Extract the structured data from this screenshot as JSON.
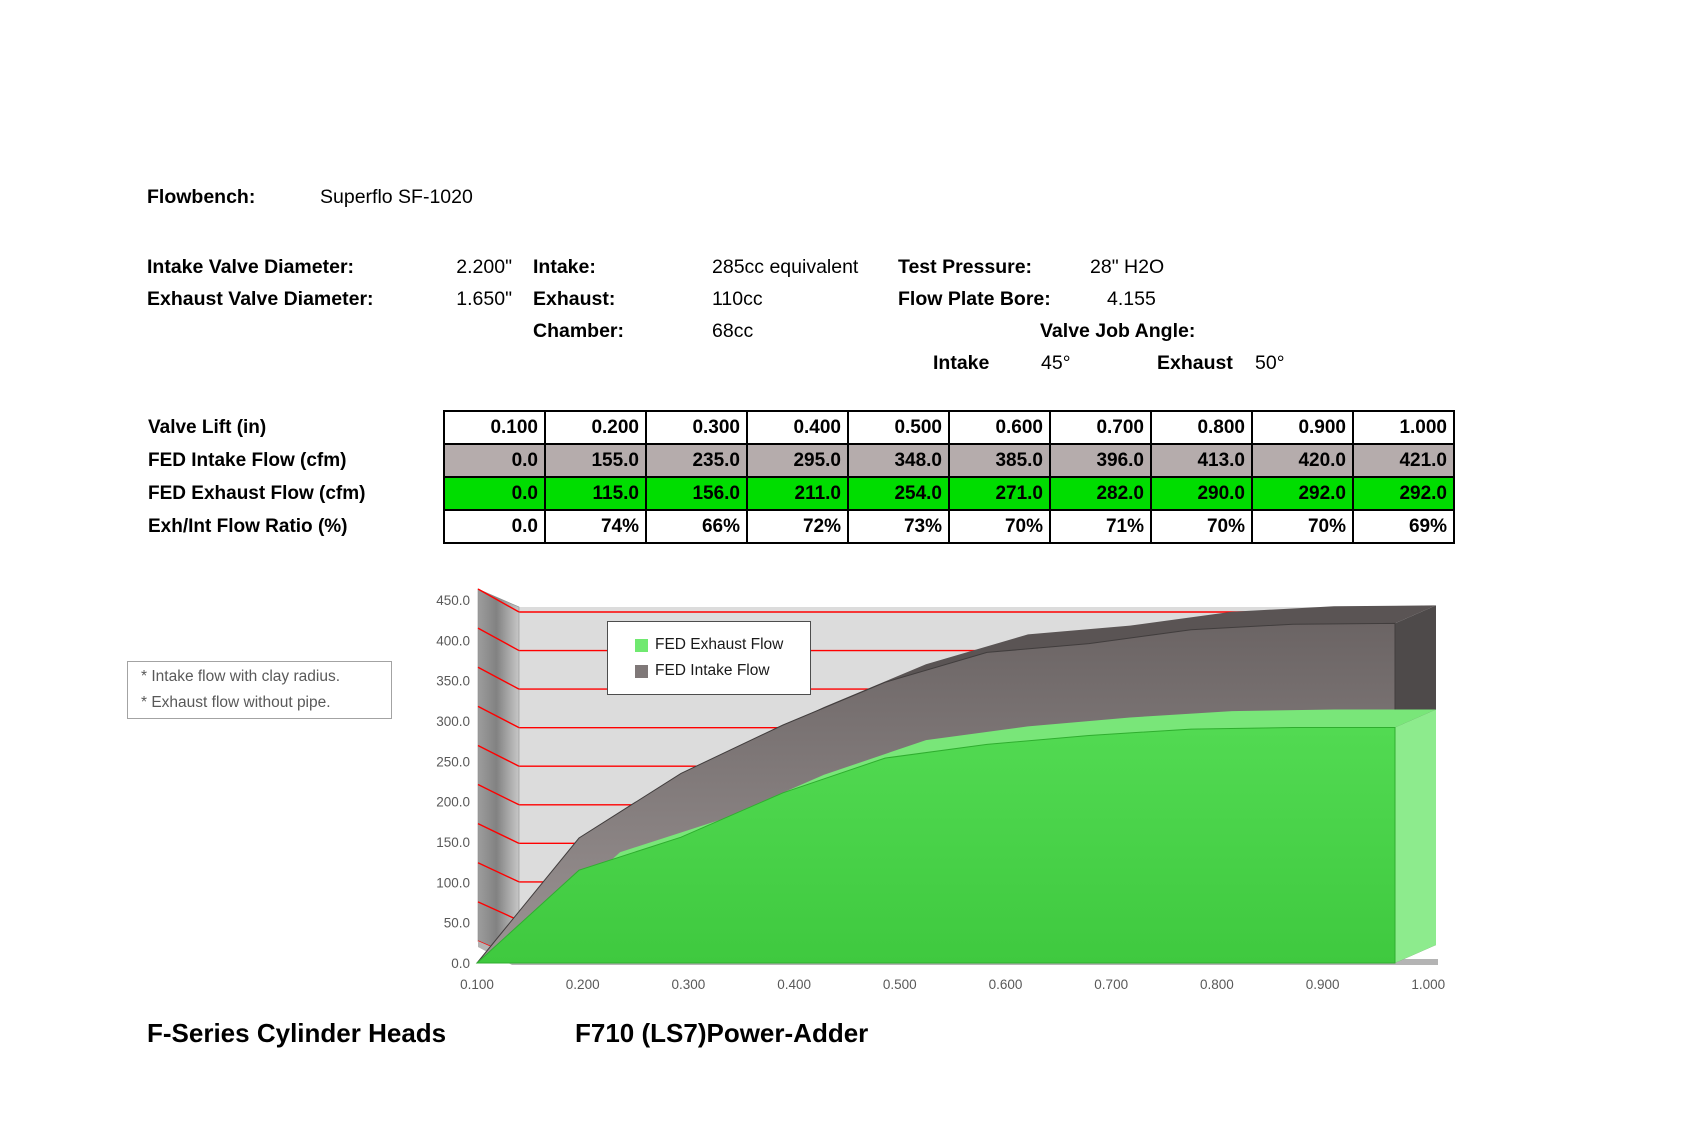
{
  "header": {
    "flowbench_label": "Flowbench:",
    "flowbench_value": "Superflo SF-1020",
    "intake_valve": {
      "label": "Intake Valve Diameter:",
      "value": "2.200\""
    },
    "exhaust_valve": {
      "label": "Exhaust Valve Diameter:",
      "value": "1.650\""
    },
    "intake_port": {
      "label": "Intake:",
      "value": "285cc equivalent"
    },
    "exhaust_port": {
      "label": "Exhaust:",
      "value": "110cc"
    },
    "chamber": {
      "label": "Chamber:",
      "value": "68cc"
    },
    "test_pressure": {
      "label": "Test Pressure:",
      "value": "28\" H2O"
    },
    "flow_plate_bore": {
      "label": "Flow Plate Bore:",
      "value": "4.155"
    },
    "valve_job": {
      "label": "Valve Job Angle:",
      "intake_label": "Intake",
      "intake_value": "45°",
      "exhaust_label": "Exhaust",
      "exhaust_value": "50°"
    }
  },
  "table": {
    "rows": [
      {
        "label": "Valve Lift (in)",
        "bg": "#ffffff",
        "values": [
          "0.100",
          "0.200",
          "0.300",
          "0.400",
          "0.500",
          "0.600",
          "0.700",
          "0.800",
          "0.900",
          "1.000"
        ]
      },
      {
        "label": "FED Intake Flow (cfm)",
        "bg": "#b5acac",
        "values": [
          "0.0",
          "155.0",
          "235.0",
          "295.0",
          "348.0",
          "385.0",
          "396.0",
          "413.0",
          "420.0",
          "421.0"
        ]
      },
      {
        "label": "FED Exhaust Flow (cfm)",
        "bg": "#00dd00",
        "values": [
          "0.0",
          "115.0",
          "156.0",
          "211.0",
          "254.0",
          "271.0",
          "282.0",
          "290.0",
          "292.0",
          "292.0"
        ]
      },
      {
        "label": "Exh/Int Flow Ratio (%)",
        "bg": "#ffffff",
        "values": [
          "0.0",
          "74%",
          "66%",
          "72%",
          "73%",
          "70%",
          "71%",
          "70%",
          "70%",
          "69%"
        ]
      }
    ]
  },
  "note": {
    "lines": [
      "* Intake flow with clay radius.",
      "* Exhaust flow without pipe."
    ]
  },
  "chart_data": {
    "type": "area",
    "style": "3d",
    "x": [
      0.1,
      0.2,
      0.3,
      0.4,
      0.5,
      0.6,
      0.7,
      0.8,
      0.9,
      1.0
    ],
    "x_tick_labels": [
      "0.100",
      "0.200",
      "0.300",
      "0.400",
      "0.500",
      "0.600",
      "0.700",
      "0.800",
      "0.900",
      "1.000"
    ],
    "y_ticks": [
      "450.0",
      "400.0",
      "350.0",
      "300.0",
      "250.0",
      "200.0",
      "150.0",
      "100.0",
      "50.0",
      "0.0"
    ],
    "ylim": [
      0,
      450
    ],
    "series": [
      {
        "name": "FED Intake Flow",
        "color": "#7d7575",
        "values": [
          0,
          155,
          235,
          295,
          348,
          385,
          396,
          413,
          420,
          421
        ]
      },
      {
        "name": "FED Exhaust Flow",
        "color": "#45d245",
        "values": [
          0,
          115,
          156,
          211,
          254,
          271,
          282,
          290,
          292,
          292
        ]
      }
    ],
    "legend": {
      "position": "inside-top-left",
      "entries": [
        "FED Exhaust Flow",
        "FED Intake Flow"
      ],
      "colors": [
        "#70e970",
        "#7f7878"
      ]
    },
    "gridlines": {
      "color": "#ff0000",
      "interval": 50
    },
    "wall_color": "#dcdcdc"
  },
  "footer": {
    "left": "F-Series Cylinder Heads",
    "right": "F710 (LS7)Power-Adder"
  }
}
